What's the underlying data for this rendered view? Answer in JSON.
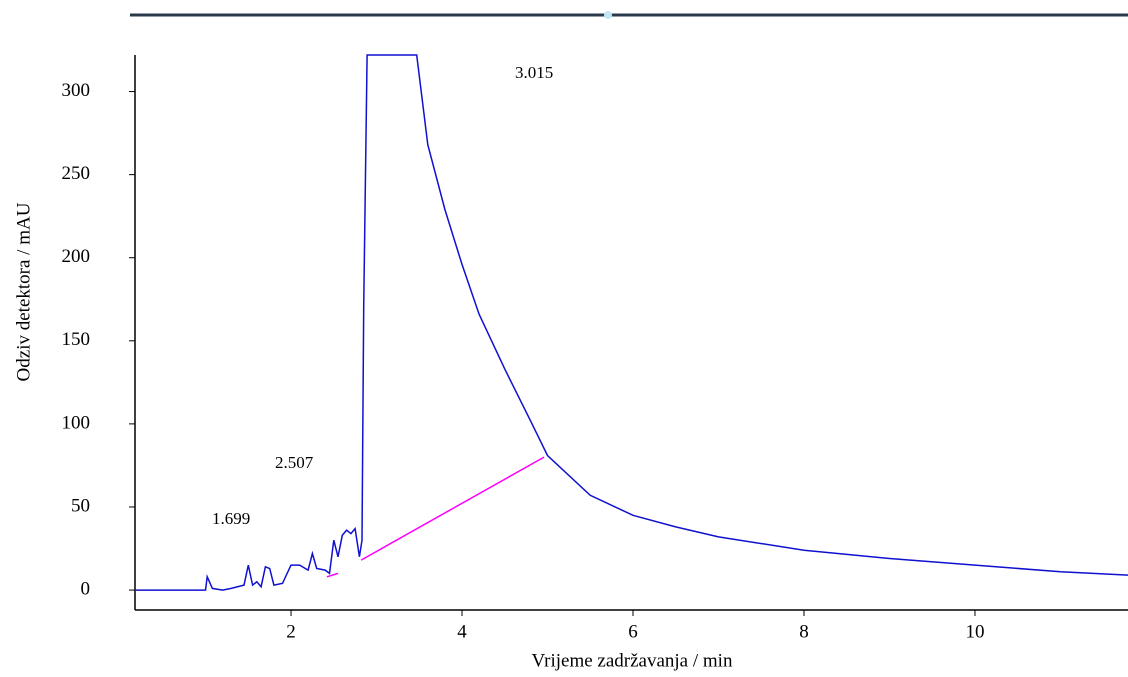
{
  "chart_data": {
    "type": "line",
    "x_label": "Vrijeme zadržavanja / min",
    "y_label": "Odziv detektora / mAU",
    "annotations": [
      "1.699",
      "2.507",
      "3.015"
    ],
    "xlim": [
      0.175,
      11.79
    ],
    "ylim": [
      -12,
      322
    ],
    "xticks": [
      2,
      4,
      6,
      8,
      10
    ],
    "yticks": [
      0,
      50,
      100,
      150,
      200,
      250,
      300
    ],
    "series": [
      {
        "color": "#1010d0",
        "x": [
          0.175,
          1.0,
          1.02,
          1.08,
          1.2,
          1.3,
          1.45,
          1.5,
          1.55,
          1.6,
          1.65,
          1.7,
          1.75,
          1.8,
          1.9,
          2.0,
          2.1,
          2.2,
          2.25,
          2.3,
          2.4,
          2.45,
          2.5,
          2.55,
          2.6,
          2.65,
          2.7,
          2.75,
          2.8,
          2.83,
          2.85,
          2.89,
          3.47,
          3.6,
          3.8,
          4.0,
          4.2,
          4.5,
          4.8,
          5.0,
          5.5,
          6.0,
          6.5,
          7.0,
          8.0,
          9.0,
          10.0,
          11.0,
          11.79
        ],
        "values": [
          0,
          0,
          8,
          1,
          0,
          1,
          3,
          15,
          3,
          5,
          2,
          14,
          13,
          3,
          4,
          15,
          15,
          12,
          22,
          13,
          12,
          10,
          30,
          20,
          33,
          36,
          34,
          37,
          20,
          30,
          170,
          322,
          322,
          268,
          229,
          196,
          166,
          133,
          102,
          81,
          57,
          45,
          38,
          32,
          24,
          19,
          15,
          11,
          9
        ]
      },
      {
        "color": "#ff00ff",
        "x": [
          2.42,
          2.55,
          2.6,
          2.82,
          4.96
        ],
        "values": [
          8,
          10,
          null,
          18,
          80
        ]
      }
    ]
  }
}
